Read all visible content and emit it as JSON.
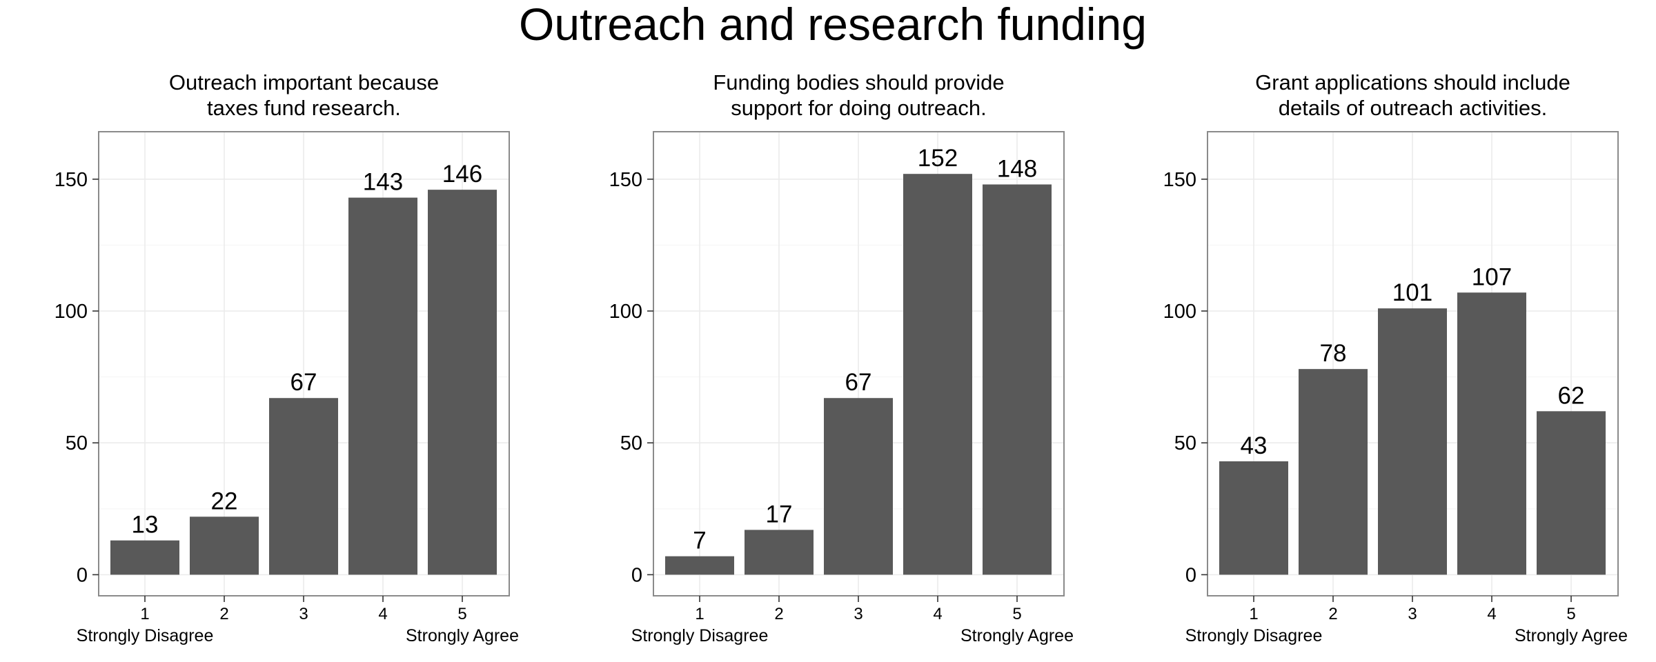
{
  "title": "Outreach and research funding",
  "colors": {
    "bar": "#595959",
    "frame": "#8a8a8a",
    "grid": "#ebebeb"
  },
  "chart_data": [
    {
      "type": "bar",
      "title": "Outreach important because taxes fund research.",
      "title_lines": [
        "Outreach important because",
        "taxes fund research."
      ],
      "categories": [
        "1",
        "2",
        "3",
        "4",
        "5"
      ],
      "values": [
        13,
        22,
        67,
        143,
        146
      ],
      "data_labels": [
        "13",
        "22",
        "67",
        "143",
        "146"
      ],
      "xlabel": "",
      "ylabel": "",
      "y_ticks": [
        0,
        50,
        100,
        150
      ],
      "ylim": [
        -8,
        168
      ],
      "end_labels": {
        "left": "Strongly Disagree",
        "right": "Strongly Agree"
      },
      "grid": true,
      "legend": "none"
    },
    {
      "type": "bar",
      "title": "Funding bodies should provide support for doing outreach.",
      "title_lines": [
        "Funding bodies should provide",
        "support for doing outreach."
      ],
      "categories": [
        "1",
        "2",
        "3",
        "4",
        "5"
      ],
      "values": [
        7,
        17,
        67,
        152,
        148
      ],
      "data_labels": [
        "7",
        "17",
        "67",
        "152",
        "148"
      ],
      "xlabel": "",
      "ylabel": "",
      "y_ticks": [
        0,
        50,
        100,
        150
      ],
      "ylim": [
        -8,
        168
      ],
      "end_labels": {
        "left": "Strongly Disagree",
        "right": "Strongly Agree"
      },
      "grid": true,
      "legend": "none"
    },
    {
      "type": "bar",
      "title": "Grant applications should include details of outreach activities.",
      "title_lines": [
        "Grant applications should include",
        "details of outreach activities."
      ],
      "categories": [
        "1",
        "2",
        "3",
        "4",
        "5"
      ],
      "values": [
        43,
        78,
        101,
        107,
        62
      ],
      "data_labels": [
        "43",
        "78",
        "101",
        "107",
        "62"
      ],
      "xlabel": "",
      "ylabel": "",
      "y_ticks": [
        0,
        50,
        100,
        150
      ],
      "ylim": [
        -8,
        168
      ],
      "end_labels": {
        "left": "Strongly Disagree",
        "right": "Strongly Agree"
      },
      "grid": true,
      "legend": "none"
    }
  ]
}
